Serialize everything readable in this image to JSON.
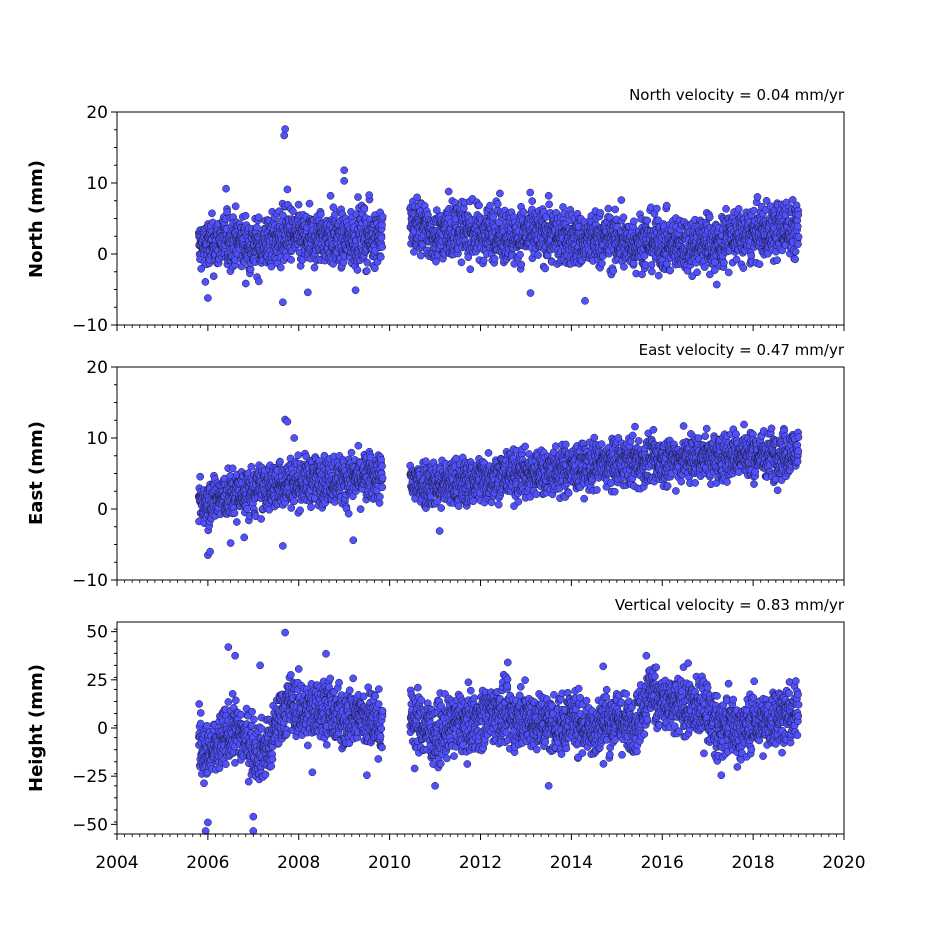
{
  "chart_data": {
    "type": "scatter",
    "shared_x": {
      "range": [
        2004,
        2020
      ],
      "major_ticks": [
        2004,
        2006,
        2008,
        2010,
        2012,
        2014,
        2016,
        2018,
        2020
      ],
      "tick_labels": [
        "2004",
        "2006",
        "2008",
        "2010",
        "2012",
        "2014",
        "2016",
        "2018",
        "2020"
      ],
      "minor_tick_step_years": 0.1666667
    },
    "marker_color": "#5050ff",
    "marker_edge_color": "#1a1a33",
    "data_gap": [
      2009.85,
      2010.45
    ],
    "panels": [
      {
        "title": "North velocity = 0.04 mm/yr",
        "ylabel": "North (mm)",
        "ylim": [
          -10,
          20
        ],
        "yticks": [
          -10,
          0,
          10,
          20
        ],
        "ytick_labels": [
          "−10",
          "0",
          "10",
          "20"
        ],
        "series": [
          {
            "x": [
              2005.8,
              2006.0,
              2006.2,
              2006.4,
              2006.6,
              2006.8,
              2007.0,
              2007.2,
              2007.4,
              2007.6,
              2007.8,
              2008.0,
              2008.2,
              2008.4,
              2008.6,
              2008.8,
              2009.0,
              2009.2,
              2009.4,
              2009.6,
              2009.8,
              2010.5,
              2010.75,
              2011.0,
              2011.25,
              2011.5,
              2011.75,
              2012.0,
              2012.25,
              2012.5,
              2012.75,
              2013.0,
              2013.25,
              2013.5,
              2013.75,
              2014.0,
              2014.25,
              2014.5,
              2014.75,
              2015.0,
              2015.25,
              2015.5,
              2015.75,
              2016.0,
              2016.25,
              2016.5,
              2016.75,
              2016.95,
              2017.2,
              2017.5,
              2017.75,
              2018.0,
              2018.25,
              2018.5,
              2018.75,
              2019.0
            ],
            "y": [
              1,
              1.2,
              1.5,
              1.8,
              2,
              1.5,
              1,
              1.3,
              1.8,
              2.5,
              2.8,
              2.2,
              1.8,
              2.2,
              2.5,
              2,
              1.8,
              2.2,
              2.5,
              2.2,
              3,
              4,
              3.5,
              2.5,
              3,
              3.6,
              3.2,
              2.8,
              3.4,
              2.7,
              2.4,
              2.9,
              2.6,
              2.9,
              2.1,
              2.3,
              1.6,
              1.9,
              2.1,
              1.8,
              1.4,
              1.7,
              1.9,
              1.5,
              1.1,
              1.6,
              1.5,
              1.9,
              1.2,
              2.6,
              2.3,
              2.7,
              3.1,
              3.3,
              3.9,
              3.1
            ],
            "spread": 2.3
          }
        ],
        "outliers": [
          [
            2007.7,
            17.6
          ],
          [
            2007.68,
            16.7
          ],
          [
            2009.0,
            11.8
          ],
          [
            2009.0,
            10.3
          ],
          [
            2007.75,
            9.1
          ],
          [
            2006.4,
            9.2
          ],
          [
            2009.55,
            8.3
          ],
          [
            2008.7,
            8.2
          ],
          [
            2014.3,
            -6.6
          ],
          [
            2007.65,
            -6.8
          ],
          [
            2006.0,
            -6.2
          ],
          [
            2013.1,
            -5.5
          ],
          [
            2008.2,
            -5.4
          ],
          [
            2009.25,
            -5.1
          ],
          [
            2017.2,
            -4.3
          ],
          [
            2011.3,
            8.8
          ],
          [
            2013.5,
            8.2
          ],
          [
            2015.1,
            7.6
          ]
        ]
      },
      {
        "title": "East velocity = 0.47 mm/yr",
        "ylabel": "East (mm)",
        "ylim": [
          -10,
          20
        ],
        "yticks": [
          -10,
          0,
          10,
          20
        ],
        "ytick_labels": [
          "−10",
          "0",
          "10",
          "20"
        ],
        "series": [
          {
            "x": [
              2005.8,
              2006.0,
              2006.2,
              2006.4,
              2006.6,
              2006.8,
              2007.0,
              2007.2,
              2007.4,
              2007.6,
              2007.8,
              2008.0,
              2008.2,
              2008.4,
              2008.6,
              2008.8,
              2009.0,
              2009.2,
              2009.4,
              2009.6,
              2009.8,
              2010.5,
              2010.75,
              2011.0,
              2011.25,
              2011.5,
              2011.75,
              2012.0,
              2012.25,
              2012.5,
              2012.75,
              2013.0,
              2013.25,
              2013.5,
              2013.75,
              2014.0,
              2014.25,
              2014.5,
              2014.75,
              2015.0,
              2015.25,
              2015.5,
              2015.75,
              2016.0,
              2016.25,
              2016.5,
              2016.75,
              2016.95,
              2017.2,
              2017.5,
              2017.75,
              2018.0,
              2018.25,
              2018.5,
              2018.75,
              2019.0
            ],
            "y": [
              1,
              1.2,
              1.5,
              1.8,
              2,
              2.3,
              2.5,
              2.8,
              3,
              3.5,
              3.8,
              3.8,
              4,
              4,
              4.2,
              4.3,
              4,
              4.3,
              4.4,
              4.4,
              4.5,
              3.8,
              3.8,
              3.6,
              3.4,
              3.6,
              3.9,
              4.2,
              4.6,
              4.8,
              4.9,
              4.9,
              5.1,
              5.3,
              5.3,
              5.6,
              5.8,
              6.2,
              6.2,
              6.3,
              6.6,
              6.6,
              6.7,
              6.8,
              7.1,
              7.2,
              7.3,
              7.6,
              7.1,
              7.6,
              7.7,
              7.5,
              7.6,
              7.7,
              7.8,
              8.1
            ],
            "spread": 2.0
          }
        ],
        "outliers": [
          [
            2007.7,
            12.6
          ],
          [
            2007.75,
            12.3
          ],
          [
            2006.0,
            -6.5
          ],
          [
            2006.05,
            -6.0
          ],
          [
            2009.2,
            -4.4
          ],
          [
            2007.65,
            -5.2
          ],
          [
            2011.1,
            -3.1
          ],
          [
            2017.8,
            11.9
          ],
          [
            2015.4,
            11.6
          ],
          [
            2006.5,
            -4.8
          ],
          [
            2006.8,
            -4.0
          ],
          [
            2007.9,
            10.0
          ]
        ]
      },
      {
        "title": "Vertical velocity = 0.83 mm/yr",
        "ylabel": "Height (mm)",
        "ylim": [
          -55,
          55
        ],
        "yticks": [
          -50,
          -25,
          0,
          25,
          50
        ],
        "ytick_labels": [
          "−50",
          "−25",
          "0",
          "25",
          "50"
        ],
        "series": [
          {
            "x": [
              2005.8,
              2006.0,
              2006.2,
              2006.4,
              2006.6,
              2006.8,
              2007.0,
              2007.2,
              2007.4,
              2007.6,
              2007.8,
              2008.0,
              2008.2,
              2008.4,
              2008.6,
              2008.8,
              2009.0,
              2009.2,
              2009.4,
              2009.6,
              2009.8,
              2010.5,
              2010.75,
              2011.0,
              2011.25,
              2011.5,
              2011.75,
              2012.0,
              2012.25,
              2012.5,
              2012.75,
              2013.0,
              2013.25,
              2013.5,
              2013.75,
              2014.0,
              2014.25,
              2014.5,
              2014.75,
              2015.0,
              2015.25,
              2015.5,
              2015.75,
              2016.0,
              2016.25,
              2016.5,
              2016.75,
              2016.95,
              2017.2,
              2017.5,
              2017.75,
              2018.0,
              2018.25,
              2018.5,
              2018.75,
              2019.0
            ],
            "y": [
              -5,
              -15,
              -10,
              -5,
              0,
              -5,
              -10,
              -12,
              -8,
              8,
              12,
              10,
              8,
              10,
              12,
              6,
              4,
              7,
              6,
              4,
              2,
              5,
              1,
              -4,
              -1,
              3,
              2,
              5,
              8,
              7,
              4,
              6,
              4,
              2,
              1,
              6,
              2,
              -1,
              3,
              5,
              1,
              6,
              20,
              13,
              10,
              12,
              9,
              11,
              -1,
              2,
              -2,
              4,
              1,
              7,
              5,
              9
            ],
            "spread": 9.0
          }
        ],
        "outliers": [
          [
            2007.7,
            49.5
          ],
          [
            2006.45,
            42.0
          ],
          [
            2006.6,
            37.5
          ],
          [
            2005.95,
            -53.5
          ],
          [
            2006.0,
            -49.0
          ],
          [
            2007.0,
            -55.0
          ],
          [
            2007.0,
            -46.0
          ],
          [
            2008.6,
            38.5
          ],
          [
            2017.3,
            -24.5
          ],
          [
            2011.0,
            -30.0
          ],
          [
            2013.5,
            -30.0
          ],
          [
            2015.65,
            37.5
          ],
          [
            2012.6,
            34.0
          ],
          [
            2010.55,
            -21.0
          ],
          [
            2008.3,
            -23.0
          ],
          [
            2009.5,
            -24.5
          ],
          [
            2007.15,
            32.5
          ],
          [
            2014.7,
            32.0
          ]
        ]
      }
    ]
  }
}
